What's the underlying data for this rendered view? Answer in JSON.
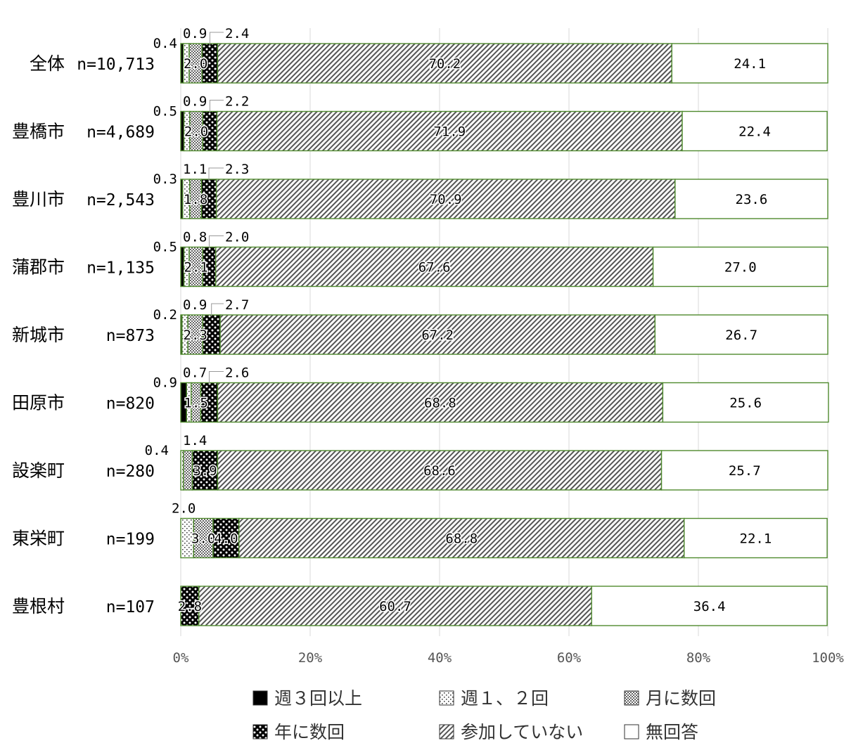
{
  "chart_data": {
    "type": "bar",
    "orientation": "horizontal",
    "stacked": "percent",
    "categories": [
      "全体",
      "豊橋市",
      "豊川市",
      "蒲郡市",
      "新城市",
      "田原市",
      "設楽町",
      "東栄町",
      "豊根村"
    ],
    "sample_sizes": [
      "n=10,713",
      "n=4,689",
      "n=2,543",
      "n=1,135",
      "n=873",
      "n=820",
      "n=280",
      "n=199",
      "n=107"
    ],
    "series": [
      {
        "name": "週３回以上",
        "values": [
          0.4,
          0.5,
          0.3,
          0.5,
          0.2,
          0.9,
          0.0,
          0.0,
          0.0
        ]
      },
      {
        "name": "週１、２回",
        "values": [
          0.9,
          0.9,
          1.1,
          0.8,
          0.9,
          0.7,
          0.4,
          2.0,
          0.0
        ]
      },
      {
        "name": "月に数回",
        "values": [
          2.0,
          2.0,
          1.8,
          2.1,
          2.3,
          1.5,
          1.4,
          3.0,
          0.0
        ]
      },
      {
        "name": "年に数回",
        "values": [
          2.4,
          2.2,
          2.3,
          2.0,
          2.7,
          2.6,
          3.9,
          4.0,
          2.8
        ]
      },
      {
        "name": "参加していない",
        "values": [
          70.2,
          71.9,
          70.9,
          67.6,
          67.2,
          68.8,
          68.6,
          68.8,
          60.7
        ]
      },
      {
        "name": "無回答",
        "values": [
          24.1,
          22.4,
          23.6,
          27.0,
          26.7,
          25.6,
          25.7,
          22.1,
          36.4
        ]
      }
    ],
    "labels": [
      {
        "s0": "0.4",
        "s1": "0.9",
        "s2": "2.0",
        "s3": "2.4",
        "s4": "70.2",
        "s5": "24.1"
      },
      {
        "s0": "0.5",
        "s1": "0.9",
        "s2": "2.0",
        "s3": "2.2",
        "s4": "71.9",
        "s5": "22.4"
      },
      {
        "s0": "0.3",
        "s1": "1.1",
        "s2": "1.8",
        "s3": "2.3",
        "s4": "70.9",
        "s5": "23.6"
      },
      {
        "s0": "0.5",
        "s1": "0.8",
        "s2": "2.1",
        "s3": "2.0",
        "s4": "67.6",
        "s5": "27.0"
      },
      {
        "s0": "0.2",
        "s1": "0.9",
        "s2": "2.3",
        "s3": "2.7",
        "s4": "67.2",
        "s5": "26.7"
      },
      {
        "s0": "0.9",
        "s1": "0.7",
        "s2": "1.5",
        "s3": "2.6",
        "s4": "68.8",
        "s5": "25.6"
      },
      {
        "s1": "0.4",
        "s2": "1.4",
        "s3": "3.9",
        "s4": "68.6",
        "s5": "25.7"
      },
      {
        "s1": "2.0",
        "s2": "3.0",
        "s3": "4.0",
        "s4": "68.8",
        "s5": "22.1"
      },
      {
        "s3": "2.8",
        "s4": "60.7",
        "s5": "36.4"
      }
    ],
    "x_ticks": [
      "0%",
      "20%",
      "40%",
      "60%",
      "80%",
      "100%"
    ],
    "xlim": [
      0,
      100
    ],
    "grid": true,
    "legend_position": "bottom",
    "colors": {
      "bar_border": "#4f8a2e",
      "weekly3": "#000000",
      "none_participation": "#999999",
      "grid": "#d9d9d9"
    }
  }
}
